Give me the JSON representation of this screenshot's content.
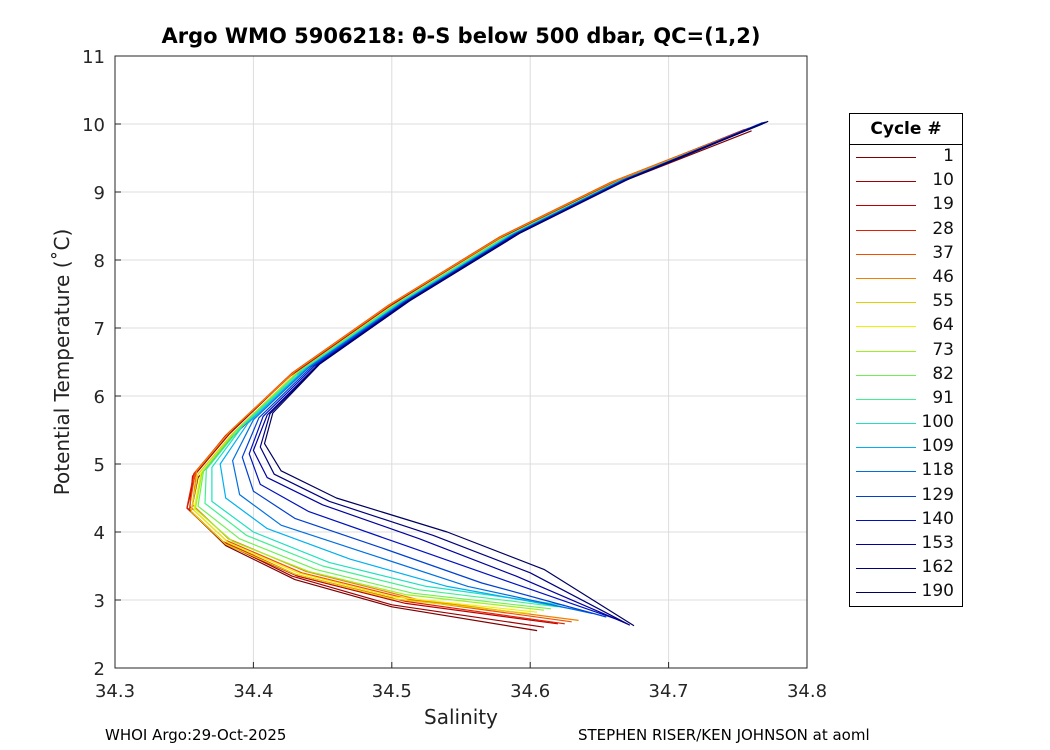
{
  "chart_data": {
    "type": "line",
    "title": "Argo WMO 5906218: θ-S below 500 dbar,  QC=(1,2)",
    "xlabel": "Salinity",
    "ylabel": "Potential Temperature (˚C)",
    "xlim": [
      34.3,
      34.8
    ],
    "ylim": [
      2,
      11
    ],
    "xticks": [
      "34.3",
      "34.4",
      "34.5",
      "34.6",
      "34.7",
      "34.8"
    ],
    "yticks": [
      "2",
      "3",
      "4",
      "5",
      "6",
      "7",
      "8",
      "9",
      "10",
      "11"
    ],
    "grid": true,
    "legend": {
      "title": "Cycle #",
      "position": "right",
      "entries": [
        {
          "label": "1",
          "color": "#800000"
        },
        {
          "label": "10",
          "color": "#9e0000"
        },
        {
          "label": "19",
          "color": "#c00000"
        },
        {
          "label": "28",
          "color": "#e02000"
        },
        {
          "label": "37",
          "color": "#f05000"
        },
        {
          "label": "46",
          "color": "#f08000"
        },
        {
          "label": "55",
          "color": "#e0d000"
        },
        {
          "label": "64",
          "color": "#f0f000"
        },
        {
          "label": "73",
          "color": "#a0f020"
        },
        {
          "label": "82",
          "color": "#70f050"
        },
        {
          "label": "91",
          "color": "#40f090"
        },
        {
          "label": "100",
          "color": "#20e0c0"
        },
        {
          "label": "109",
          "color": "#00b0f0"
        },
        {
          "label": "118",
          "color": "#0070e0"
        },
        {
          "label": "129",
          "color": "#0040d0"
        },
        {
          "label": "140",
          "color": "#0010c0"
        },
        {
          "label": "153",
          "color": "#0000a0"
        },
        {
          "label": "162",
          "color": "#00007e"
        },
        {
          "label": "190",
          "color": "#000060"
        }
      ]
    },
    "series": [
      {
        "name": "1",
        "color": "#800000",
        "points": [
          [
            34.605,
            2.55
          ],
          [
            34.5,
            2.9
          ],
          [
            34.43,
            3.3
          ],
          [
            34.38,
            3.8
          ],
          [
            34.355,
            4.3
          ],
          [
            34.36,
            4.8
          ],
          [
            34.385,
            5.4
          ],
          [
            34.43,
            6.3
          ],
          [
            34.5,
            7.3
          ],
          [
            34.58,
            8.3
          ],
          [
            34.66,
            9.1
          ],
          [
            34.76,
            9.9
          ]
        ]
      },
      {
        "name": "10",
        "color": "#9e0000",
        "points": [
          [
            34.61,
            2.6
          ],
          [
            34.5,
            2.93
          ],
          [
            34.428,
            3.35
          ],
          [
            34.378,
            3.85
          ],
          [
            34.352,
            4.35
          ],
          [
            34.358,
            4.85
          ],
          [
            34.383,
            5.45
          ],
          [
            34.428,
            6.33
          ],
          [
            34.498,
            7.32
          ],
          [
            34.578,
            8.32
          ],
          [
            34.658,
            9.12
          ],
          [
            34.758,
            9.92
          ]
        ]
      },
      {
        "name": "19",
        "color": "#c00000",
        "points": [
          [
            34.62,
            2.65
          ],
          [
            34.51,
            2.95
          ],
          [
            34.432,
            3.35
          ],
          [
            34.38,
            3.82
          ],
          [
            34.354,
            4.32
          ],
          [
            34.356,
            4.82
          ],
          [
            34.38,
            5.42
          ],
          [
            34.427,
            6.3
          ],
          [
            34.497,
            7.3
          ],
          [
            34.575,
            8.3
          ],
          [
            34.655,
            9.1
          ],
          [
            34.755,
            9.92
          ]
        ]
      },
      {
        "name": "28",
        "color": "#e02000",
        "points": [
          [
            34.625,
            2.65
          ],
          [
            34.51,
            2.98
          ],
          [
            34.43,
            3.38
          ],
          [
            34.378,
            3.86
          ],
          [
            34.352,
            4.36
          ],
          [
            34.357,
            4.86
          ],
          [
            34.382,
            5.46
          ],
          [
            34.428,
            6.34
          ],
          [
            34.498,
            7.34
          ],
          [
            34.578,
            8.34
          ],
          [
            34.658,
            9.14
          ],
          [
            34.758,
            9.94
          ]
        ]
      },
      {
        "name": "37",
        "color": "#f05000",
        "points": [
          [
            34.63,
            2.68
          ],
          [
            34.515,
            3.0
          ],
          [
            34.435,
            3.4
          ],
          [
            34.38,
            3.88
          ],
          [
            34.354,
            4.38
          ],
          [
            34.358,
            4.88
          ],
          [
            34.383,
            5.48
          ],
          [
            34.429,
            6.35
          ],
          [
            34.499,
            7.35
          ],
          [
            34.579,
            8.35
          ],
          [
            34.659,
            9.15
          ],
          [
            34.76,
            9.95
          ]
        ]
      },
      {
        "name": "46",
        "color": "#f08000",
        "points": [
          [
            34.635,
            2.7
          ],
          [
            34.52,
            3.0
          ],
          [
            34.438,
            3.42
          ],
          [
            34.382,
            3.9
          ],
          [
            34.356,
            4.4
          ],
          [
            34.359,
            4.9
          ],
          [
            34.384,
            5.5
          ],
          [
            34.43,
            6.36
          ],
          [
            34.5,
            7.36
          ],
          [
            34.58,
            8.35
          ],
          [
            34.66,
            9.15
          ],
          [
            34.762,
            9.96
          ]
        ]
      },
      {
        "name": "55",
        "color": "#e0d000",
        "points": [
          [
            34.6,
            2.8
          ],
          [
            34.5,
            3.02
          ],
          [
            34.43,
            3.38
          ],
          [
            34.38,
            3.82
          ],
          [
            34.355,
            4.3
          ],
          [
            34.36,
            4.85
          ],
          [
            34.385,
            5.45
          ],
          [
            34.43,
            6.32
          ],
          [
            34.5,
            7.32
          ],
          [
            34.58,
            8.32
          ],
          [
            34.66,
            9.12
          ],
          [
            34.76,
            9.95
          ]
        ]
      },
      {
        "name": "64",
        "color": "#f0f000",
        "points": [
          [
            34.605,
            2.82
          ],
          [
            34.5,
            3.05
          ],
          [
            34.432,
            3.4
          ],
          [
            34.382,
            3.84
          ],
          [
            34.357,
            4.32
          ],
          [
            34.362,
            4.86
          ],
          [
            34.386,
            5.46
          ],
          [
            34.431,
            6.33
          ],
          [
            34.501,
            7.33
          ],
          [
            34.581,
            8.33
          ],
          [
            34.661,
            9.13
          ],
          [
            34.762,
            9.96
          ]
        ]
      },
      {
        "name": "73",
        "color": "#a0f020",
        "points": [
          [
            34.61,
            2.85
          ],
          [
            34.51,
            3.08
          ],
          [
            34.44,
            3.42
          ],
          [
            34.385,
            3.86
          ],
          [
            34.358,
            4.34
          ],
          [
            34.363,
            4.88
          ],
          [
            34.387,
            5.48
          ],
          [
            34.432,
            6.34
          ],
          [
            34.502,
            7.34
          ],
          [
            34.582,
            8.34
          ],
          [
            34.662,
            9.14
          ],
          [
            34.764,
            9.98
          ]
        ]
      },
      {
        "name": "82",
        "color": "#70f050",
        "points": [
          [
            34.615,
            2.87
          ],
          [
            34.515,
            3.1
          ],
          [
            34.445,
            3.45
          ],
          [
            34.39,
            3.9
          ],
          [
            34.36,
            4.38
          ],
          [
            34.364,
            4.9
          ],
          [
            34.388,
            5.5
          ],
          [
            34.433,
            6.36
          ],
          [
            34.503,
            7.35
          ],
          [
            34.583,
            8.35
          ],
          [
            34.663,
            9.15
          ],
          [
            34.765,
            9.98
          ]
        ]
      },
      {
        "name": "91",
        "color": "#40f090",
        "points": [
          [
            34.62,
            2.9
          ],
          [
            34.52,
            3.15
          ],
          [
            34.45,
            3.5
          ],
          [
            34.395,
            3.95
          ],
          [
            34.365,
            4.42
          ],
          [
            34.366,
            4.92
          ],
          [
            34.39,
            5.52
          ],
          [
            34.434,
            6.37
          ],
          [
            34.504,
            7.36
          ],
          [
            34.584,
            8.36
          ],
          [
            34.664,
            9.16
          ],
          [
            34.766,
            9.99
          ]
        ]
      },
      {
        "name": "100",
        "color": "#20e0c0",
        "points": [
          [
            34.625,
            2.92
          ],
          [
            34.525,
            3.2
          ],
          [
            34.455,
            3.55
          ],
          [
            34.4,
            4.0
          ],
          [
            34.37,
            4.45
          ],
          [
            34.37,
            4.95
          ],
          [
            34.392,
            5.55
          ],
          [
            34.436,
            6.38
          ],
          [
            34.505,
            7.36
          ],
          [
            34.585,
            8.36
          ],
          [
            34.665,
            9.16
          ],
          [
            34.766,
            10.0
          ]
        ]
      },
      {
        "name": "109",
        "color": "#00b0f0",
        "points": [
          [
            34.635,
            2.85
          ],
          [
            34.54,
            3.2
          ],
          [
            34.47,
            3.6
          ],
          [
            34.41,
            4.05
          ],
          [
            34.38,
            4.5
          ],
          [
            34.376,
            5.0
          ],
          [
            34.396,
            5.6
          ],
          [
            34.438,
            6.4
          ],
          [
            34.507,
            7.37
          ],
          [
            34.587,
            8.37
          ],
          [
            34.666,
            9.17
          ],
          [
            34.767,
            10.0
          ]
        ]
      },
      {
        "name": "118",
        "color": "#0070e0",
        "points": [
          [
            34.645,
            2.8
          ],
          [
            34.555,
            3.2
          ],
          [
            34.48,
            3.7
          ],
          [
            34.42,
            4.1
          ],
          [
            34.39,
            4.55
          ],
          [
            34.385,
            5.05
          ],
          [
            34.4,
            5.65
          ],
          [
            34.44,
            6.42
          ],
          [
            34.508,
            7.38
          ],
          [
            34.588,
            8.38
          ],
          [
            34.667,
            9.18
          ],
          [
            34.768,
            10.0
          ]
        ]
      },
      {
        "name": "129",
        "color": "#0040d0",
        "points": [
          [
            34.655,
            2.75
          ],
          [
            34.565,
            3.25
          ],
          [
            34.495,
            3.75
          ],
          [
            34.43,
            4.2
          ],
          [
            34.4,
            4.6
          ],
          [
            34.392,
            5.1
          ],
          [
            34.404,
            5.68
          ],
          [
            34.442,
            6.43
          ],
          [
            34.509,
            7.38
          ],
          [
            34.589,
            8.38
          ],
          [
            34.668,
            9.18
          ],
          [
            34.768,
            10.02
          ]
        ]
      },
      {
        "name": "140",
        "color": "#0010c0",
        "points": [
          [
            34.665,
            2.7
          ],
          [
            34.58,
            3.3
          ],
          [
            34.51,
            3.8
          ],
          [
            34.44,
            4.3
          ],
          [
            34.405,
            4.7
          ],
          [
            34.397,
            5.15
          ],
          [
            34.407,
            5.7
          ],
          [
            34.444,
            6.44
          ],
          [
            34.51,
            7.38
          ],
          [
            34.59,
            8.38
          ],
          [
            34.669,
            9.18
          ],
          [
            34.769,
            10.02
          ]
        ]
      },
      {
        "name": "153",
        "color": "#0000a0",
        "points": [
          [
            34.67,
            2.65
          ],
          [
            34.59,
            3.35
          ],
          [
            34.52,
            3.9
          ],
          [
            34.45,
            4.4
          ],
          [
            34.41,
            4.8
          ],
          [
            34.4,
            5.2
          ],
          [
            34.41,
            5.72
          ],
          [
            34.446,
            6.45
          ],
          [
            34.511,
            7.39
          ],
          [
            34.591,
            8.39
          ],
          [
            34.67,
            9.19
          ],
          [
            34.77,
            10.03
          ]
        ]
      },
      {
        "name": "162",
        "color": "#00007e",
        "points": [
          [
            34.672,
            2.63
          ],
          [
            34.6,
            3.4
          ],
          [
            34.53,
            3.95
          ],
          [
            34.455,
            4.45
          ],
          [
            34.415,
            4.85
          ],
          [
            34.405,
            5.25
          ],
          [
            34.412,
            5.74
          ],
          [
            34.447,
            6.46
          ],
          [
            34.512,
            7.39
          ],
          [
            34.592,
            8.39
          ],
          [
            34.671,
            9.19
          ],
          [
            34.771,
            10.03
          ]
        ]
      },
      {
        "name": "190",
        "color": "#000060",
        "points": [
          [
            34.675,
            2.62
          ],
          [
            34.61,
            3.45
          ],
          [
            34.54,
            4.0
          ],
          [
            34.46,
            4.5
          ],
          [
            34.42,
            4.9
          ],
          [
            34.408,
            5.3
          ],
          [
            34.414,
            5.75
          ],
          [
            34.448,
            6.47
          ],
          [
            34.513,
            7.4
          ],
          [
            34.593,
            8.4
          ],
          [
            34.672,
            9.2
          ],
          [
            34.772,
            10.04
          ]
        ]
      }
    ]
  },
  "footer": {
    "left": "WHOI Argo:29-Oct-2025",
    "right": "STEPHEN RISER/KEN JOHNSON at aoml"
  }
}
